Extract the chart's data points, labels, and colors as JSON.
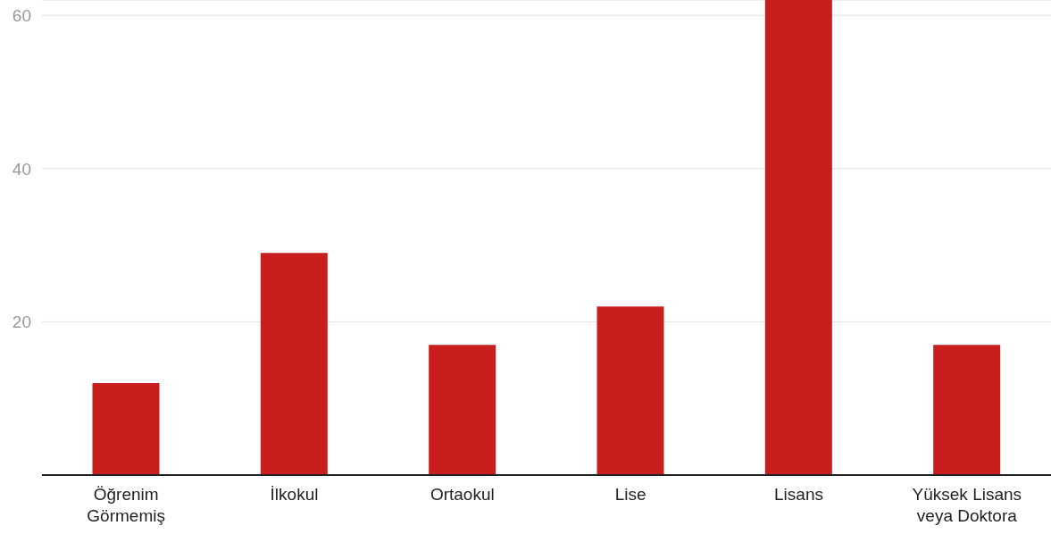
{
  "chart_data": {
    "type": "bar",
    "categories": [
      "Öğrenim Görmemiş",
      "İlkokul",
      "Ortaokul",
      "Lise",
      "Lisans",
      "Yüksek Lisans veya Doktora"
    ],
    "values": [
      12,
      29,
      17,
      22,
      62,
      17
    ],
    "color": "#c81e1e",
    "ylim": [
      0,
      62
    ],
    "yticks": [
      20,
      40,
      60
    ],
    "grid": "y"
  }
}
